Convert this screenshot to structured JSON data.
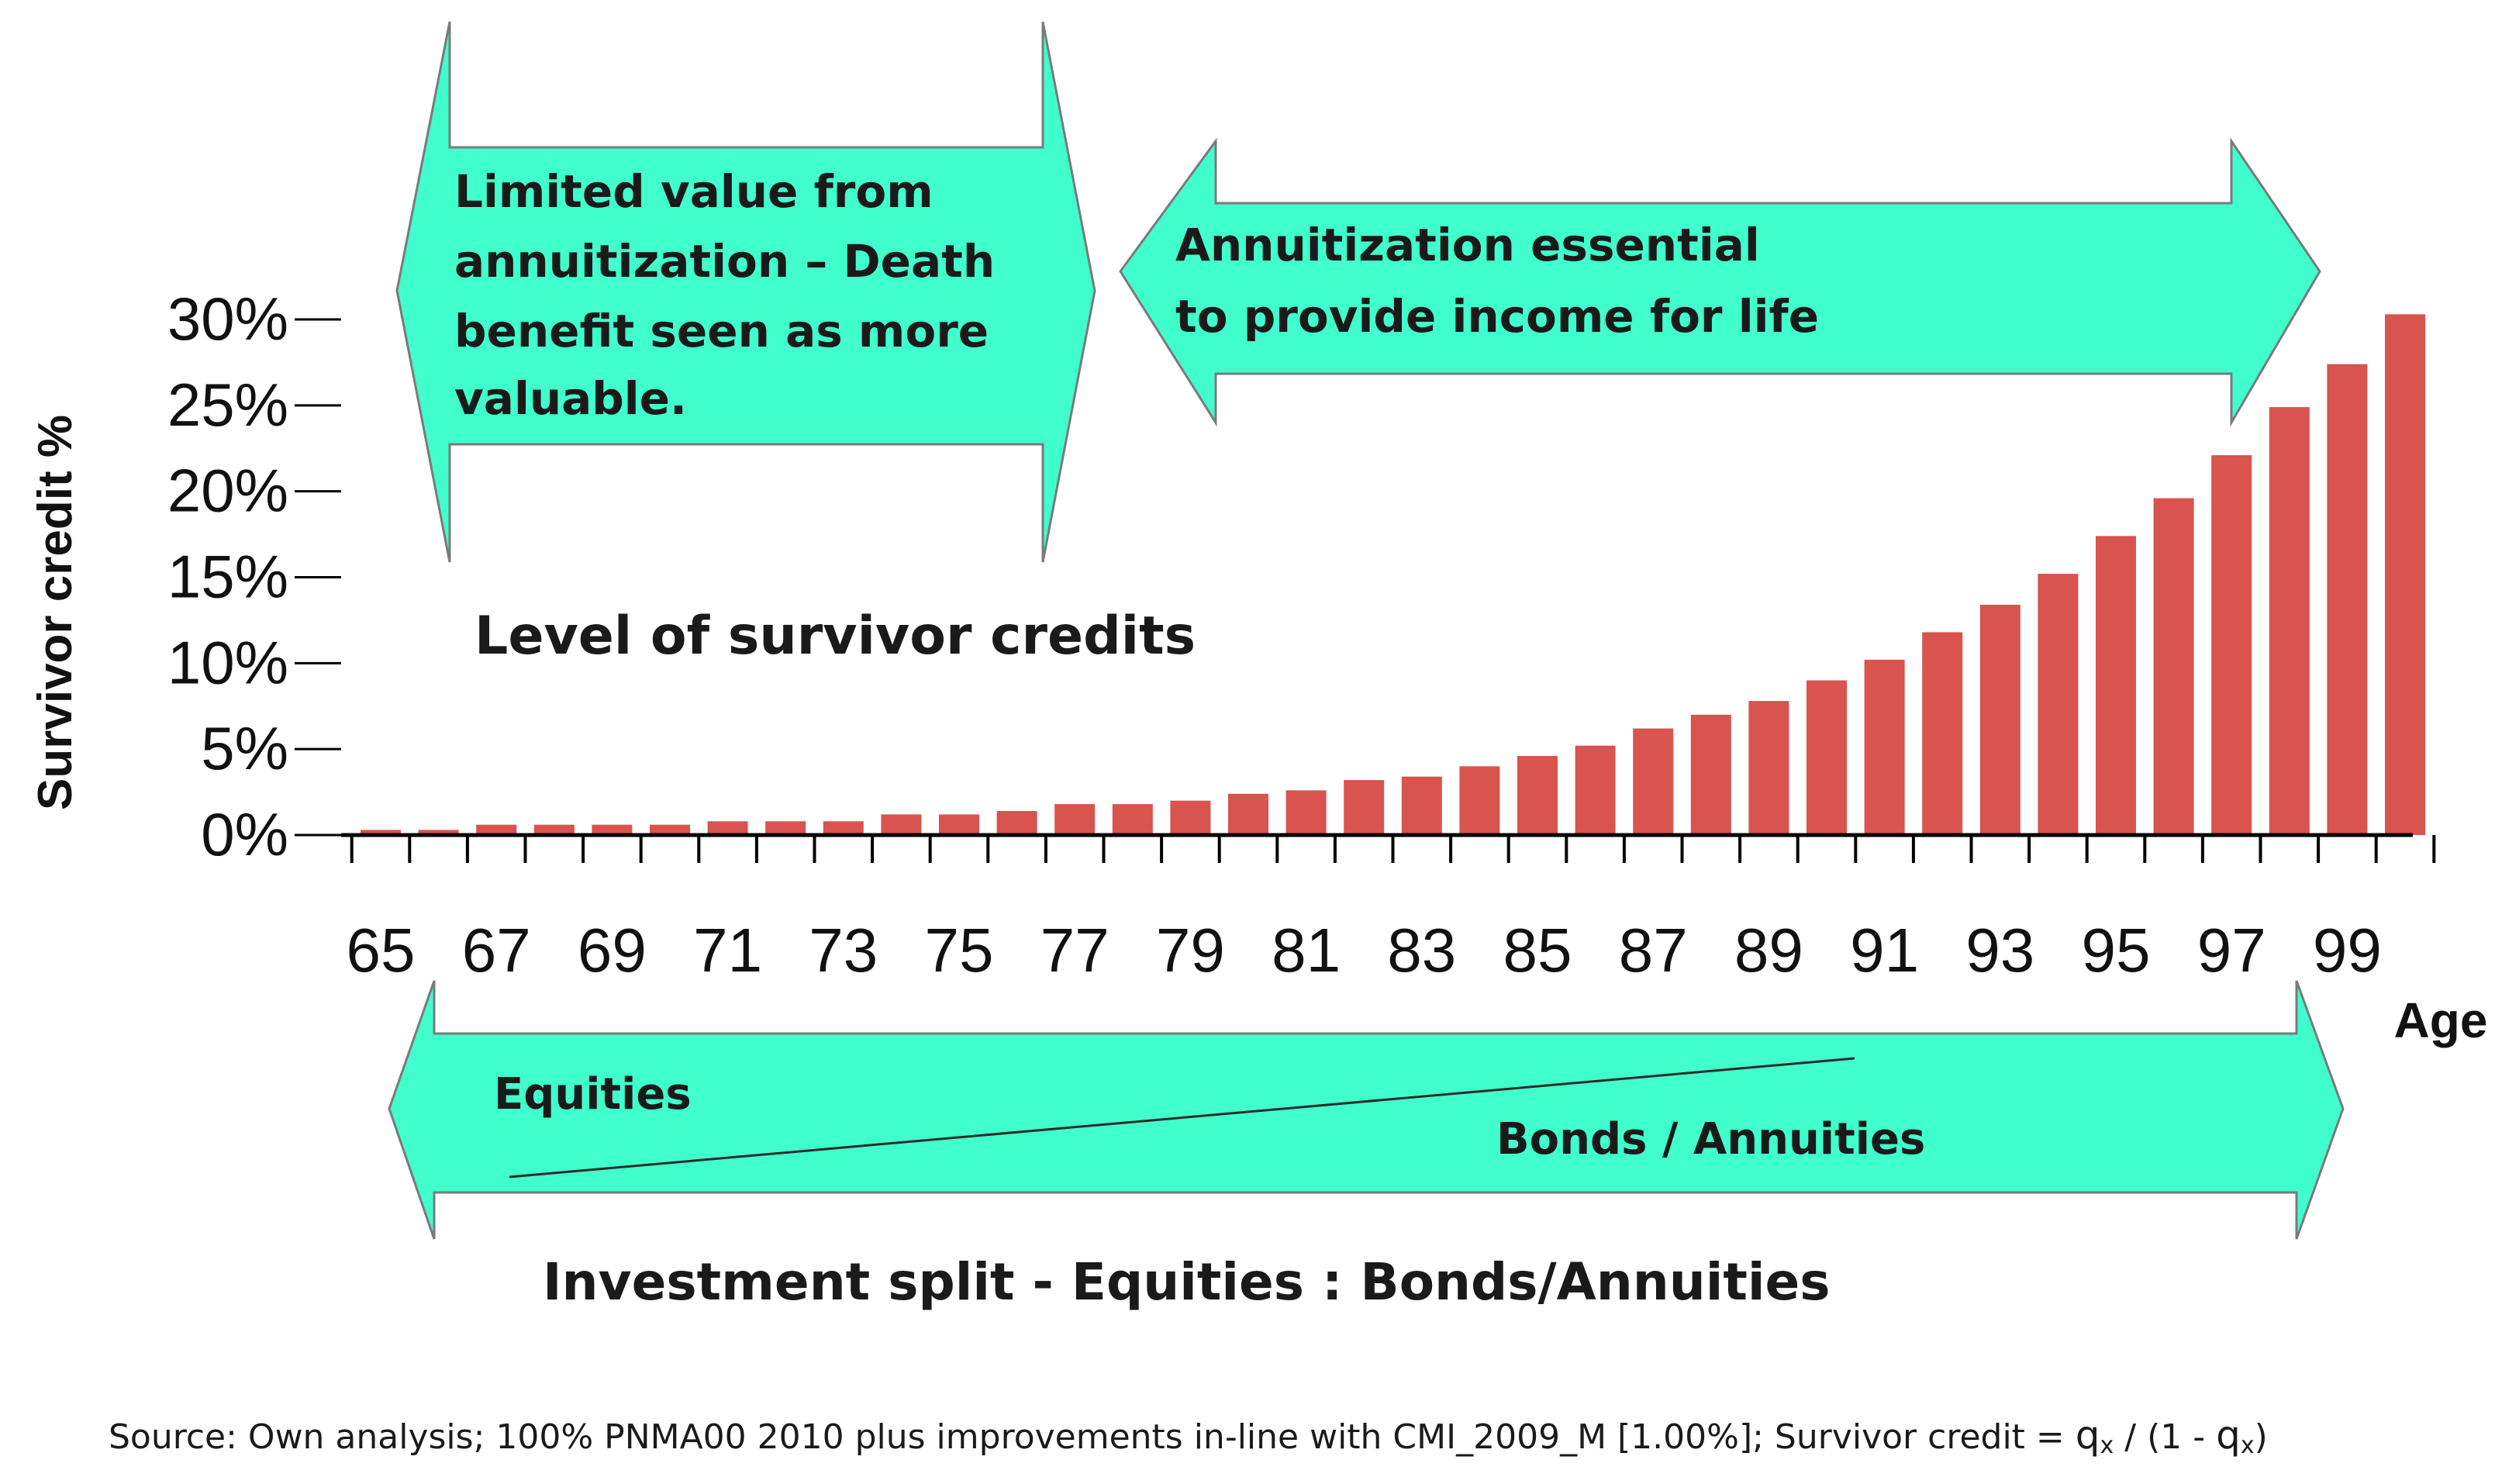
{
  "chart_data": {
    "type": "bar",
    "title": "Level of survivor credits",
    "xlabel": "Age",
    "ylabel": "Survivor credit  %",
    "ylim": [
      0,
      30
    ],
    "yticks": [
      "30%",
      "25%",
      "20%",
      "15%",
      "10%",
      "5%",
      "0%"
    ],
    "xtick_labels": [
      "65",
      "67",
      "69",
      "71",
      "73",
      "75",
      "77",
      "79",
      "81",
      "83",
      "85",
      "87",
      "89",
      "91",
      "93",
      "95",
      "97",
      "99"
    ],
    "categories": [
      65,
      66,
      67,
      68,
      69,
      70,
      71,
      72,
      73,
      74,
      75,
      76,
      77,
      78,
      79,
      80,
      81,
      82,
      83,
      84,
      85,
      86,
      87,
      88,
      89,
      90,
      91,
      92,
      93,
      94,
      95,
      96,
      97,
      98,
      99,
      100
    ],
    "values": [
      0.3,
      0.3,
      0.6,
      0.6,
      0.6,
      0.6,
      0.8,
      0.8,
      0.8,
      1.2,
      1.2,
      1.4,
      1.8,
      1.8,
      2.0,
      2.4,
      2.6,
      3.2,
      3.4,
      4.0,
      4.6,
      5.2,
      6.2,
      7.0,
      7.8,
      9.0,
      10.2,
      11.8,
      13.4,
      15.2,
      17.4,
      19.6,
      22.1,
      24.9,
      27.4,
      30.3
    ],
    "bar_color": "#d9534f",
    "grid": false
  },
  "annotations": {
    "top_left_arrow": {
      "lines": [
        "Limited value from",
        "annuitization – Death",
        "benefit seen as more",
        "valuable."
      ],
      "color": "#40ffcc"
    },
    "top_right_arrow": {
      "lines": [
        "Annuitization essential",
        "to provide income for life"
      ],
      "color": "#40ffcc"
    },
    "bottom_arrow": {
      "equities_label": "Equities",
      "bonds_label": "Bonds / Annuities",
      "color": "#40ffcc"
    },
    "investment_split": "Investment split - Equities : Bonds/Annuities"
  },
  "source": {
    "text": "Source:  Own analysis; 100% PNMA00 2010 plus improvements in-line with CMI_2009_M [1.00%]; Survivor credit  =  ",
    "q1": "q",
    "x1": "x",
    "mid": " / (1 - ",
    "q2": "q",
    "x2": "x",
    "end": ")"
  }
}
